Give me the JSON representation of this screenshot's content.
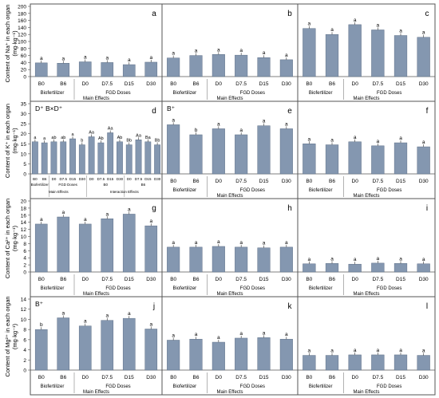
{
  "colors": {
    "bar": "#8497b0",
    "bar_edge": "#5f7088",
    "frame": "#555555",
    "grid": "#808080"
  },
  "y_labels": [
    "Content of Na⁺ in each organ (mg·kg⁻¹)",
    "Content of K⁺ in each organ (mg·kg⁻¹)",
    "Content of Ca²⁺ in each organ (mg·kg⁻¹)",
    "Content of Mg²⁺ in each organ (mg·kg⁻¹)"
  ],
  "group_labels": {
    "biofertilizer": "Biofertilizer",
    "fgd": "FGD Doses",
    "main_effects": "Main Effects",
    "interaction_effects": "Interaction Effects"
  },
  "chart_data": [
    {
      "type": "bar",
      "panel": "a",
      "row": 0,
      "col": 0,
      "ylim": [
        0,
        200
      ],
      "yticks": [
        0,
        20,
        40,
        60,
        80,
        100,
        120,
        140,
        160,
        180,
        200
      ],
      "categories": [
        "B0",
        "B6",
        "D0",
        "D7.5",
        "D15",
        "D30"
      ],
      "values": [
        39,
        38,
        42,
        40,
        34,
        41
      ],
      "letters": [
        "a",
        "a",
        "a",
        "a",
        "a",
        "a"
      ]
    },
    {
      "type": "bar",
      "panel": "b",
      "row": 0,
      "col": 1,
      "ylim": [
        0,
        200
      ],
      "categories": [
        "B0",
        "B6",
        "D0",
        "D7.5",
        "D15",
        "D30"
      ],
      "values": [
        53,
        60,
        63,
        61,
        54,
        48
      ],
      "letters": [
        "a",
        "a",
        "a",
        "a",
        "a",
        "a"
      ]
    },
    {
      "type": "bar",
      "panel": "c",
      "row": 0,
      "col": 2,
      "ylim": [
        0,
        200
      ],
      "categories": [
        "B0",
        "B6",
        "D0",
        "D7.5",
        "D15",
        "D30"
      ],
      "values": [
        137,
        120,
        148,
        133,
        117,
        112
      ],
      "letters": [
        "a",
        "a",
        "a",
        "a",
        "a",
        "a"
      ]
    },
    {
      "type": "bar",
      "panel": "d",
      "row": 1,
      "col": 0,
      "ylim": [
        0,
        35
      ],
      "yticks": [
        0,
        5,
        10,
        15,
        20,
        25,
        30,
        35
      ],
      "annotation": "D⁺ B×D⁺",
      "categories": [
        "B0",
        "B6",
        "D0",
        "D7.5",
        "D15",
        "D30",
        "D0",
        "D7.5",
        "D15",
        "D30",
        "D0",
        "D7.5",
        "D15",
        "D30"
      ],
      "values": [
        16,
        15.5,
        16,
        16,
        17.5,
        14.5,
        18.5,
        15.5,
        20.5,
        16,
        14.5,
        17,
        16,
        14.5
      ],
      "letters": [
        "a",
        "a",
        "ab",
        "ab",
        "a",
        "b",
        "Aa",
        "Ab",
        "Aa",
        "Ab",
        "Bb",
        "Aa",
        "Ba",
        "Bb"
      ],
      "interaction_groups": [
        "B0",
        "B6"
      ]
    },
    {
      "type": "bar",
      "panel": "e",
      "row": 1,
      "col": 1,
      "ylim": [
        0,
        35
      ],
      "annotation": "B⁺",
      "categories": [
        "B0",
        "B6",
        "D0",
        "D7.5",
        "D15",
        "D30"
      ],
      "values": [
        24.5,
        19.5,
        22.5,
        19.5,
        24,
        22.5
      ],
      "letters": [
        "a",
        "b",
        "a",
        "a",
        "a",
        "a"
      ]
    },
    {
      "type": "bar",
      "panel": "f",
      "row": 1,
      "col": 2,
      "ylim": [
        0,
        35
      ],
      "categories": [
        "B0",
        "B6",
        "D0",
        "D7.5",
        "D15",
        "D30"
      ],
      "values": [
        15,
        14.5,
        16,
        14,
        15.5,
        13.5
      ],
      "letters": [
        "a",
        "a",
        "a",
        "a",
        "a",
        "a"
      ]
    },
    {
      "type": "bar",
      "panel": "g",
      "row": 2,
      "col": 0,
      "ylim": [
        0,
        20
      ],
      "yticks": [
        0,
        2,
        4,
        6,
        8,
        10,
        12,
        14,
        16,
        18,
        20
      ],
      "categories": [
        "B0",
        "B6",
        "D0",
        "D7.5",
        "D15",
        "D30"
      ],
      "values": [
        13.5,
        15.5,
        13.5,
        15,
        16.3,
        13
      ],
      "letters": [
        "a",
        "a",
        "a",
        "a",
        "a",
        "a"
      ]
    },
    {
      "type": "bar",
      "panel": "h",
      "row": 2,
      "col": 1,
      "ylim": [
        0,
        20
      ],
      "categories": [
        "B0",
        "B6",
        "D0",
        "D7.5",
        "D15",
        "D30"
      ],
      "values": [
        7,
        7,
        7.2,
        7,
        6.8,
        7
      ],
      "letters": [
        "a",
        "a",
        "a",
        "a",
        "a",
        "a"
      ]
    },
    {
      "type": "bar",
      "panel": "i",
      "row": 2,
      "col": 2,
      "ylim": [
        0,
        20
      ],
      "categories": [
        "B0",
        "B6",
        "D0",
        "D7.5",
        "D15",
        "D30"
      ],
      "values": [
        2.3,
        2.4,
        2.2,
        2.5,
        2.4,
        2.3
      ],
      "letters": [
        "a",
        "a",
        "a",
        "a",
        "a",
        "a"
      ]
    },
    {
      "type": "bar",
      "panel": "j",
      "row": 3,
      "col": 0,
      "ylim": [
        0,
        14
      ],
      "yticks": [
        0,
        2,
        4,
        6,
        8,
        10,
        12,
        14
      ],
      "annotation": "B⁺",
      "categories": [
        "B0",
        "B6",
        "D0",
        "D7.5",
        "D15",
        "D30"
      ],
      "values": [
        8,
        10.3,
        8.7,
        9.8,
        10.2,
        8.1
      ],
      "letters": [
        "b",
        "a",
        "a",
        "a",
        "a",
        "a"
      ]
    },
    {
      "type": "bar",
      "panel": "k",
      "row": 3,
      "col": 1,
      "ylim": [
        0,
        14
      ],
      "categories": [
        "B0",
        "B6",
        "D0",
        "D7.5",
        "D15",
        "D30"
      ],
      "values": [
        5.9,
        6.1,
        5.5,
        6.3,
        6.4,
        6.1
      ],
      "letters": [
        "a",
        "a",
        "a",
        "a",
        "a",
        "a"
      ]
    },
    {
      "type": "bar",
      "panel": "l",
      "row": 3,
      "col": 2,
      "ylim": [
        0,
        14
      ],
      "categories": [
        "B0",
        "B6",
        "D0",
        "D7.5",
        "D15",
        "D30"
      ],
      "values": [
        2.9,
        2.9,
        3,
        3,
        3,
        2.9
      ],
      "letters": [
        "a",
        "a",
        "a",
        "a",
        "a",
        "a"
      ]
    }
  ]
}
